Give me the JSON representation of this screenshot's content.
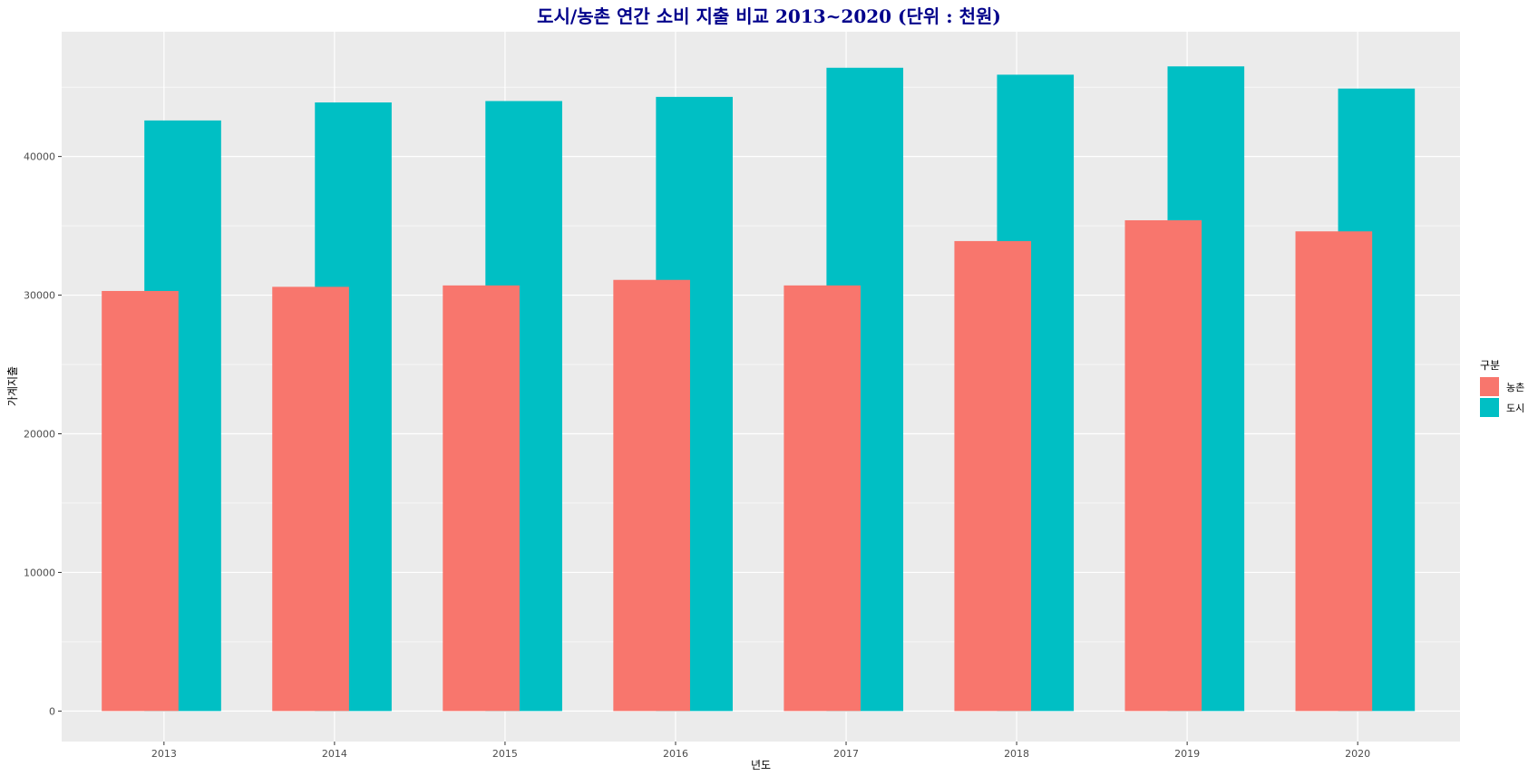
{
  "chart_data": {
    "type": "bar",
    "title": "도시/농촌 연간 소비 지출 비교 2013~2020 (단위 : 천원)",
    "xlabel": "년도",
    "ylabel": "가계지출",
    "categories": [
      "2013",
      "2014",
      "2015",
      "2016",
      "2017",
      "2018",
      "2019",
      "2020"
    ],
    "series": [
      {
        "name": "농촌",
        "color": "#F8766D",
        "values": [
          30300,
          30600,
          30700,
          31100,
          30700,
          33900,
          35400,
          34600
        ]
      },
      {
        "name": "도시",
        "color": "#00BFC4",
        "values": [
          42600,
          43900,
          44000,
          44300,
          46400,
          45900,
          46500,
          44900
        ]
      }
    ],
    "ylim": [
      -2200,
      49000
    ],
    "yticks": [
      0,
      10000,
      20000,
      30000,
      40000
    ],
    "grid": true,
    "legend": {
      "title": "구분",
      "position": "right"
    },
    "panel_color": "#EBEBEB",
    "grid_color": "#FFFFFF"
  }
}
